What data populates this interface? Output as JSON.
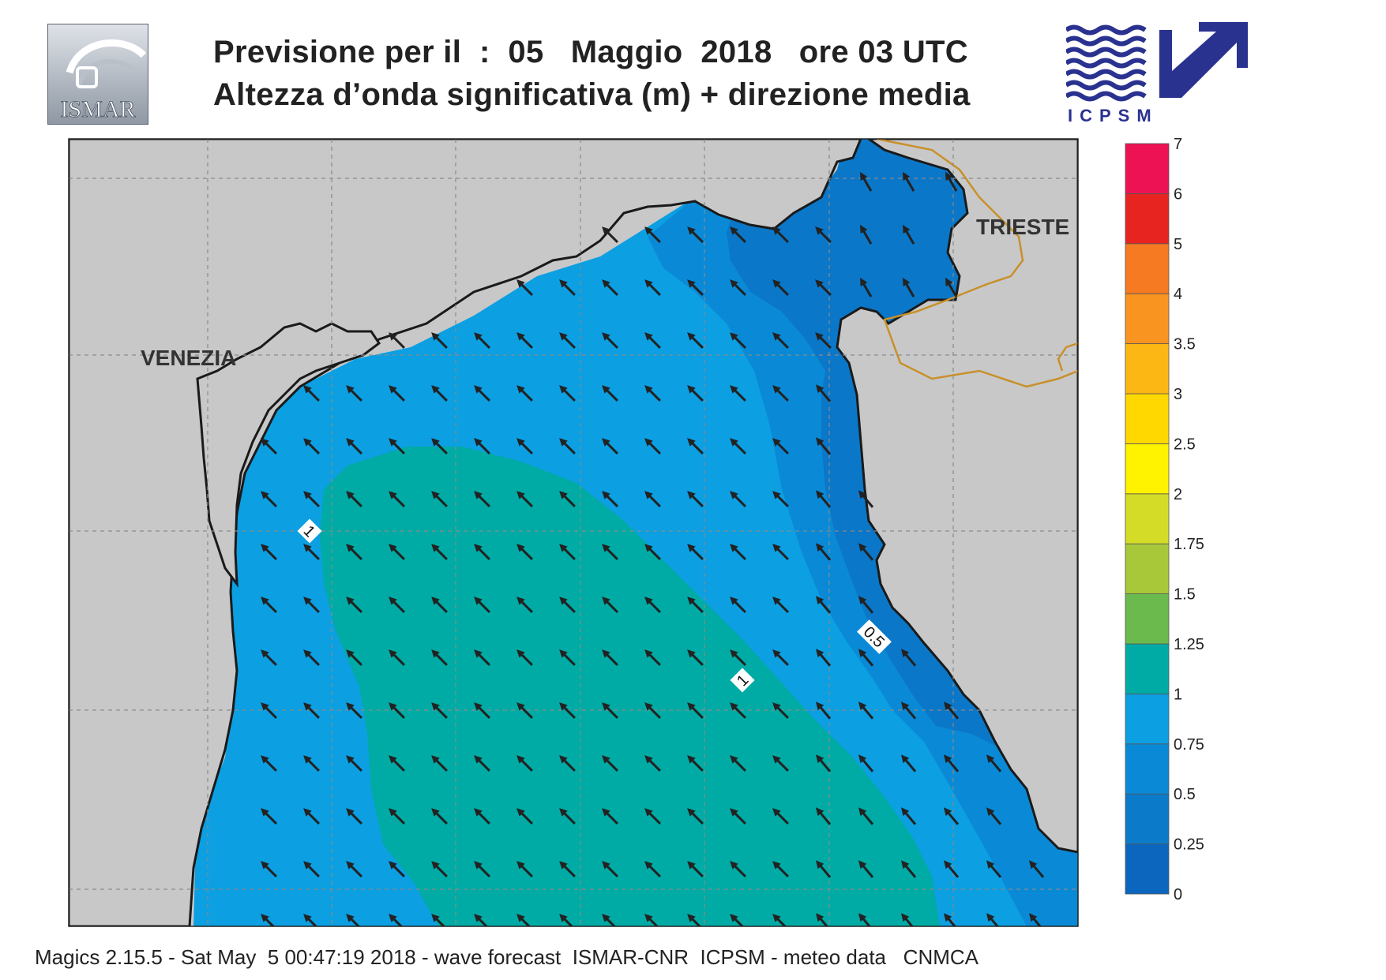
{
  "header": {
    "line1": "Previsione per il  :  05   Maggio  2018   ore 03 UTC",
    "line2": "Altezza d’onda significativa (m) + direzione media"
  },
  "logos": {
    "ismar": {
      "text": "ISMAR",
      "icon": "ismar-logo-icon"
    },
    "icpsm": {
      "text": "ICPSM",
      "icon": "icpsm-waves-arrow-icon"
    }
  },
  "map": {
    "cities": [
      "VENEZIA",
      "TRIESTE"
    ],
    "contour_labels": [
      "1",
      "0.5",
      "1"
    ],
    "colors": {
      "land": "#c8c8c8",
      "sea_0_25_0_5": "#0b77c8",
      "sea_0_5_0_75": "#0a8ad6",
      "sea_0_75_1": "#0c9fe2",
      "sea_1_1_25": "#00aba5",
      "border": "#c8902a",
      "coast": "#1a1a1a"
    },
    "arrow_direction": "north-west"
  },
  "legend": {
    "labels": [
      "0",
      "0.25",
      "0.5",
      "0.75",
      "1",
      "1.25",
      "1.5",
      "1.75",
      "2",
      "2.5",
      "3",
      "3.5",
      "4",
      "5",
      "6",
      "7"
    ],
    "colors": [
      "#0c66bd",
      "#0b7ac9",
      "#0a8ad6",
      "#0c9fe2",
      "#00aba5",
      "#6aba4e",
      "#a8c83a",
      "#d4dc28",
      "#fff300",
      "#ffd800",
      "#fdb714",
      "#f99420",
      "#f57a22",
      "#e82420",
      "#ed1253"
    ]
  },
  "footer": {
    "text": "Magics 2.15.5 - Sat May  5 00:47:19 2018 - wave forecast  ISMAR-CNR  ICPSM - meteo data   CNMCA"
  }
}
